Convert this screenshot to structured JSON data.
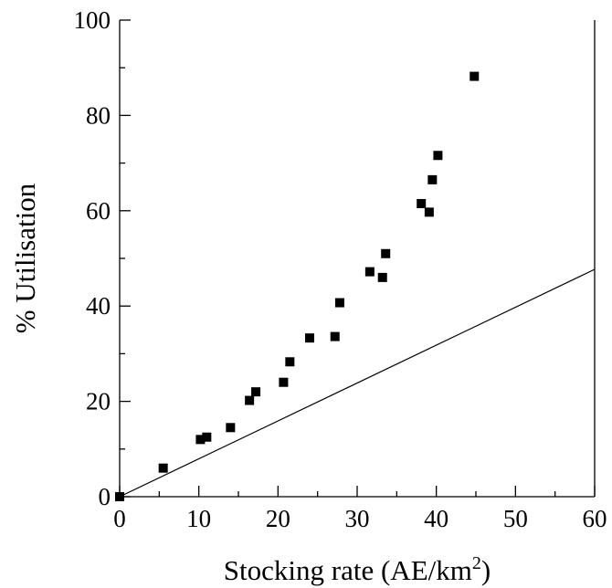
{
  "chart_data": {
    "type": "scatter",
    "xlabel": "Stocking rate (AE/km",
    "xlabel_sup": "2",
    "xlabel_end": ")",
    "ylabel": "% Utilisation",
    "xlim": [
      0,
      60
    ],
    "ylim": [
      0,
      100
    ],
    "xticks": [
      0,
      10,
      20,
      30,
      40,
      50,
      60
    ],
    "yticks": [
      0,
      20,
      40,
      60,
      80,
      100
    ],
    "grid": false,
    "marker": "square",
    "marker_color": "#000000",
    "series": [
      {
        "points": [
          [
            0,
            0
          ],
          [
            5.5,
            6
          ],
          [
            10.2,
            12
          ],
          [
            11,
            12.5
          ],
          [
            14,
            14.5
          ],
          [
            16.4,
            20.2
          ],
          [
            17.2,
            22
          ],
          [
            20.7,
            24
          ],
          [
            21.5,
            28.3
          ],
          [
            24,
            33.3
          ],
          [
            27.2,
            33.6
          ],
          [
            27.8,
            40.7
          ],
          [
            31.6,
            47.2
          ],
          [
            33.2,
            46
          ],
          [
            33.6,
            51
          ],
          [
            38.1,
            61.5
          ],
          [
            39.1,
            59.7
          ],
          [
            39.5,
            66.5
          ],
          [
            40.2,
            71.6
          ],
          [
            44.8,
            88.2
          ]
        ]
      }
    ],
    "reference_line": {
      "from": [
        0,
        0
      ],
      "to": [
        60,
        47.7
      ]
    }
  }
}
